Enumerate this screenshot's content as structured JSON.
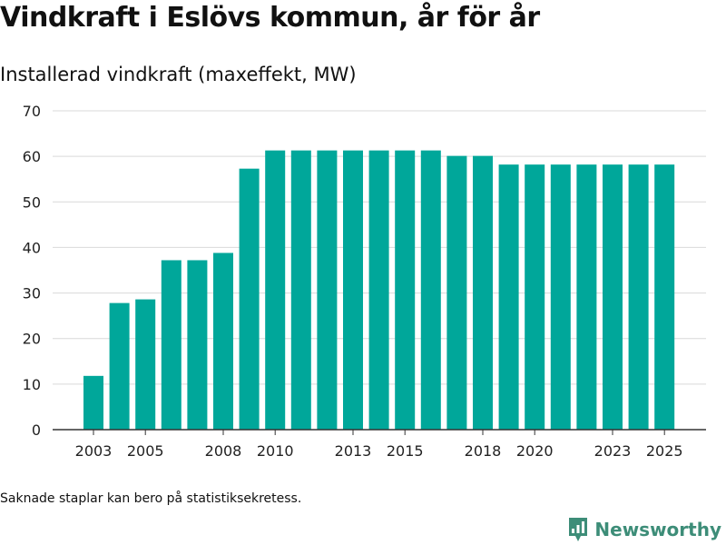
{
  "title": "Vindkraft i Eslövs kommun, år för år",
  "subtitle": "Installerad vindkraft (maxeffekt, MW)",
  "footnote": "Saknade staplar kan bero på statistiksekretess.",
  "brand": {
    "name": "Newsworthy",
    "icon": "newsworthy-logo-icon",
    "color": "#3d8d78"
  },
  "colors": {
    "bar": "#00a79a",
    "grid": "#d9d9d9",
    "axis": "#333333"
  },
  "chart_data": {
    "type": "bar",
    "title": "Installerad vindkraft (maxeffekt, MW)",
    "categories": [
      2002,
      2003,
      2004,
      2005,
      2006,
      2007,
      2008,
      2009,
      2010,
      2011,
      2012,
      2013,
      2014,
      2015,
      2016,
      2017,
      2018,
      2019,
      2020,
      2021,
      2022,
      2023,
      2024,
      2025
    ],
    "values": [
      null,
      11.8,
      27.8,
      28.6,
      37.2,
      37.2,
      38.8,
      57.3,
      61.3,
      61.3,
      61.3,
      61.3,
      61.3,
      61.3,
      61.3,
      60.1,
      60.1,
      58.2,
      58.2,
      58.2,
      58.2,
      58.2,
      58.2,
      58.2
    ],
    "x_tick_labels": [
      "2003",
      "2005",
      "2008",
      "2010",
      "2013",
      "2015",
      "2018",
      "2020",
      "2023",
      "2025"
    ],
    "y_ticks": [
      0,
      10,
      20,
      30,
      40,
      50,
      60,
      70
    ],
    "ylim": [
      0,
      70
    ],
    "xlabel": "",
    "ylabel": "",
    "grid": true
  }
}
